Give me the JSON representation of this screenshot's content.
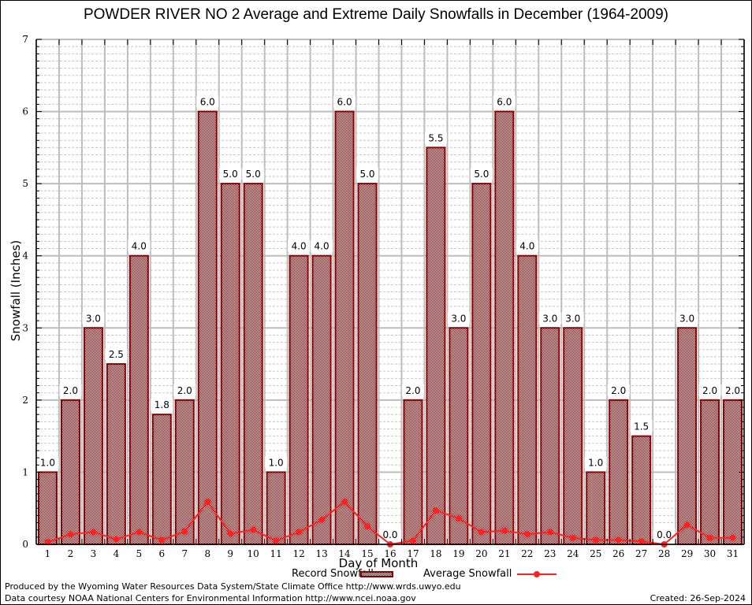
{
  "chart_data": {
    "type": "bar",
    "title": "POWDER RIVER NO 2 Average and Extreme Daily Snowfalls in December (1964-2009)",
    "xlabel": "Day of Month",
    "ylabel": "Snowfall (Inches)",
    "ylim": [
      0,
      7
    ],
    "yticks": [
      "0",
      "1",
      "2",
      "3",
      "4",
      "5",
      "6",
      "7"
    ],
    "grid": true,
    "categories": [
      "1",
      "2",
      "3",
      "4",
      "5",
      "6",
      "7",
      "8",
      "9",
      "10",
      "11",
      "12",
      "13",
      "14",
      "15",
      "16",
      "17",
      "18",
      "19",
      "20",
      "21",
      "22",
      "23",
      "24",
      "25",
      "26",
      "27",
      "28",
      "29",
      "30",
      "31"
    ],
    "series": [
      {
        "name": "Record Snowfall",
        "kind": "bar",
        "color": "#8b0000",
        "values": [
          1.0,
          2.0,
          3.0,
          2.5,
          4.0,
          1.8,
          2.0,
          6.0,
          5.0,
          5.0,
          1.0,
          4.0,
          4.0,
          6.0,
          5.0,
          0.0,
          2.0,
          5.5,
          3.0,
          5.0,
          6.0,
          4.0,
          3.0,
          3.0,
          1.0,
          2.0,
          1.5,
          0.0,
          3.0,
          2.0,
          2.0
        ],
        "labels": [
          "1.0",
          "2.0",
          "3.0",
          "2.5",
          "4.0",
          "1.8",
          "2.0",
          "6.0",
          "5.0",
          "5.0",
          "1.0",
          "4.0",
          "4.0",
          "6.0",
          "5.0",
          "0.0",
          "2.0",
          "5.5",
          "3.0",
          "5.0",
          "6.0",
          "4.0",
          "3.0",
          "3.0",
          "1.0",
          "2.0",
          "1.5",
          "0.0",
          "3.0",
          "2.0",
          "2.0"
        ]
      },
      {
        "name": "Average Snowfall",
        "kind": "line",
        "color": "#ff2020",
        "values": [
          0.03,
          0.14,
          0.17,
          0.07,
          0.17,
          0.06,
          0.18,
          0.59,
          0.15,
          0.2,
          0.05,
          0.17,
          0.34,
          0.59,
          0.25,
          0.0,
          0.05,
          0.47,
          0.36,
          0.17,
          0.19,
          0.14,
          0.17,
          0.09,
          0.06,
          0.06,
          0.04,
          0.0,
          0.27,
          0.09,
          0.09
        ]
      }
    ],
    "legend_position": "bottom"
  },
  "footer": {
    "line1": "Produced by the Wyoming Water Resources Data System/State Climate Office http://www.wrds.uwyo.edu",
    "line2": "Data courtesy NOAA National Centers for Environmental Information http://www.ncei.noaa.gov",
    "created": "Created: 26-Sep-2024"
  }
}
